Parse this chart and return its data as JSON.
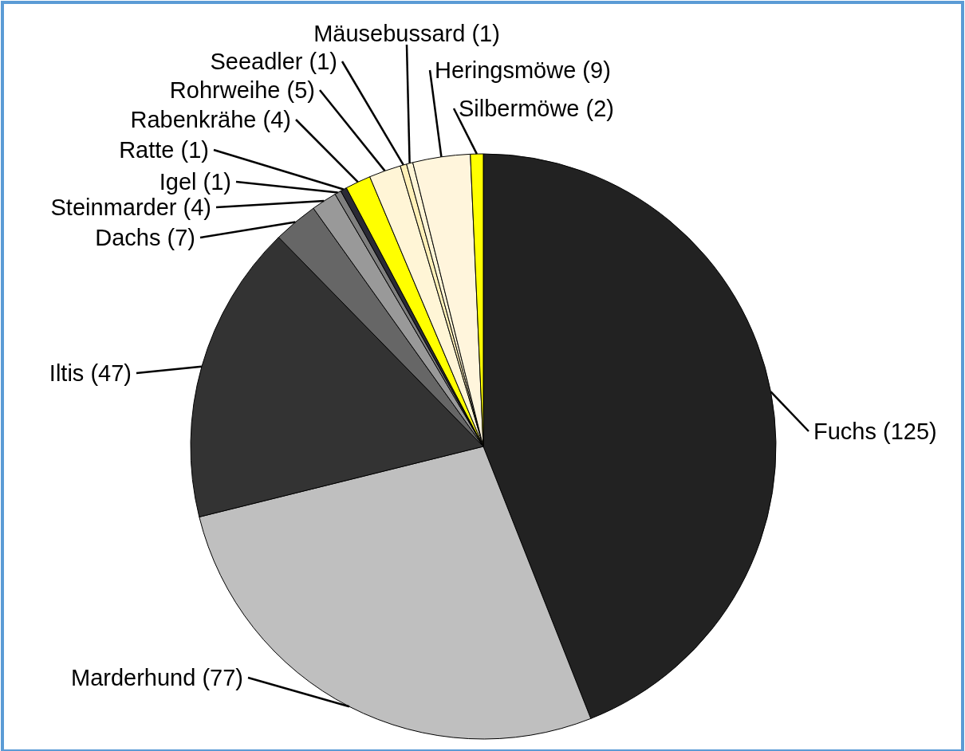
{
  "chart_data": {
    "type": "pie",
    "categories": [
      "Fuchs (125)",
      "Marderhund (77)",
      "Iltis (47)",
      "Dachs (7)",
      "Steinmarder (4)",
      "Igel (1)",
      "Ratte (1)",
      "Rabenkrähe (4)",
      "Rohrweihe (5)",
      "Seeadler (1)",
      "Mäusebussard (1)",
      "Heringsmöwe (9)",
      "Silbermöwe (2)"
    ],
    "values": [
      125,
      77,
      47,
      7,
      4,
      1,
      1,
      4,
      5,
      1,
      1,
      9,
      2
    ],
    "colors": [
      "#222222",
      "#bfbfbf",
      "#333333",
      "#666666",
      "#999999",
      "#7f7f7f",
      "#2a2a35",
      "#ffff00",
      "#fff5d6",
      "#fff0b8",
      "#fff5d6",
      "#fff5dc",
      "#ffff00"
    ]
  }
}
